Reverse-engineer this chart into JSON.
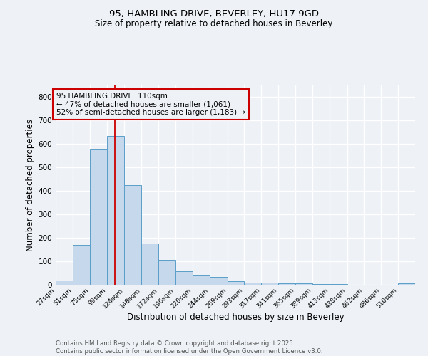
{
  "title1": "95, HAMBLING DRIVE, BEVERLEY, HU17 9GD",
  "title2": "Size of property relative to detached houses in Beverley",
  "xlabel": "Distribution of detached houses by size in Beverley",
  "ylabel": "Number of detached properties",
  "bar_color": "#c5d8ec",
  "bar_edge_color": "#5a9ec9",
  "bins": [
    27,
    51,
    75,
    99,
    124,
    148,
    172,
    196,
    220,
    244,
    269,
    293,
    317,
    341,
    365,
    389,
    413,
    438,
    462,
    486,
    510
  ],
  "values": [
    18,
    170,
    580,
    635,
    425,
    175,
    105,
    57,
    42,
    32,
    15,
    10,
    8,
    6,
    5,
    3,
    2,
    1,
    1,
    1,
    5
  ],
  "tick_labels": [
    "27sqm",
    "51sqm",
    "75sqm",
    "99sqm",
    "124sqm",
    "148sqm",
    "172sqm",
    "196sqm",
    "220sqm",
    "244sqm",
    "269sqm",
    "293sqm",
    "317sqm",
    "341sqm",
    "365sqm",
    "389sqm",
    "413sqm",
    "438sqm",
    "462sqm",
    "486sqm",
    "510sqm"
  ],
  "ylim": [
    0,
    850
  ],
  "yticks": [
    0,
    100,
    200,
    300,
    400,
    500,
    600,
    700,
    800
  ],
  "red_line_x": 110,
  "annotation_title": "95 HAMBLING DRIVE: 110sqm",
  "annotation_line1": "← 47% of detached houses are smaller (1,061)",
  "annotation_line2": "52% of semi-detached houses are larger (1,183) →",
  "annotation_color": "#cc0000",
  "bg_color": "#eef2f7",
  "grid_color": "#ffffff",
  "footnote1": "Contains HM Land Registry data © Crown copyright and database right 2025.",
  "footnote2": "Contains public sector information licensed under the Open Government Licence v3.0."
}
